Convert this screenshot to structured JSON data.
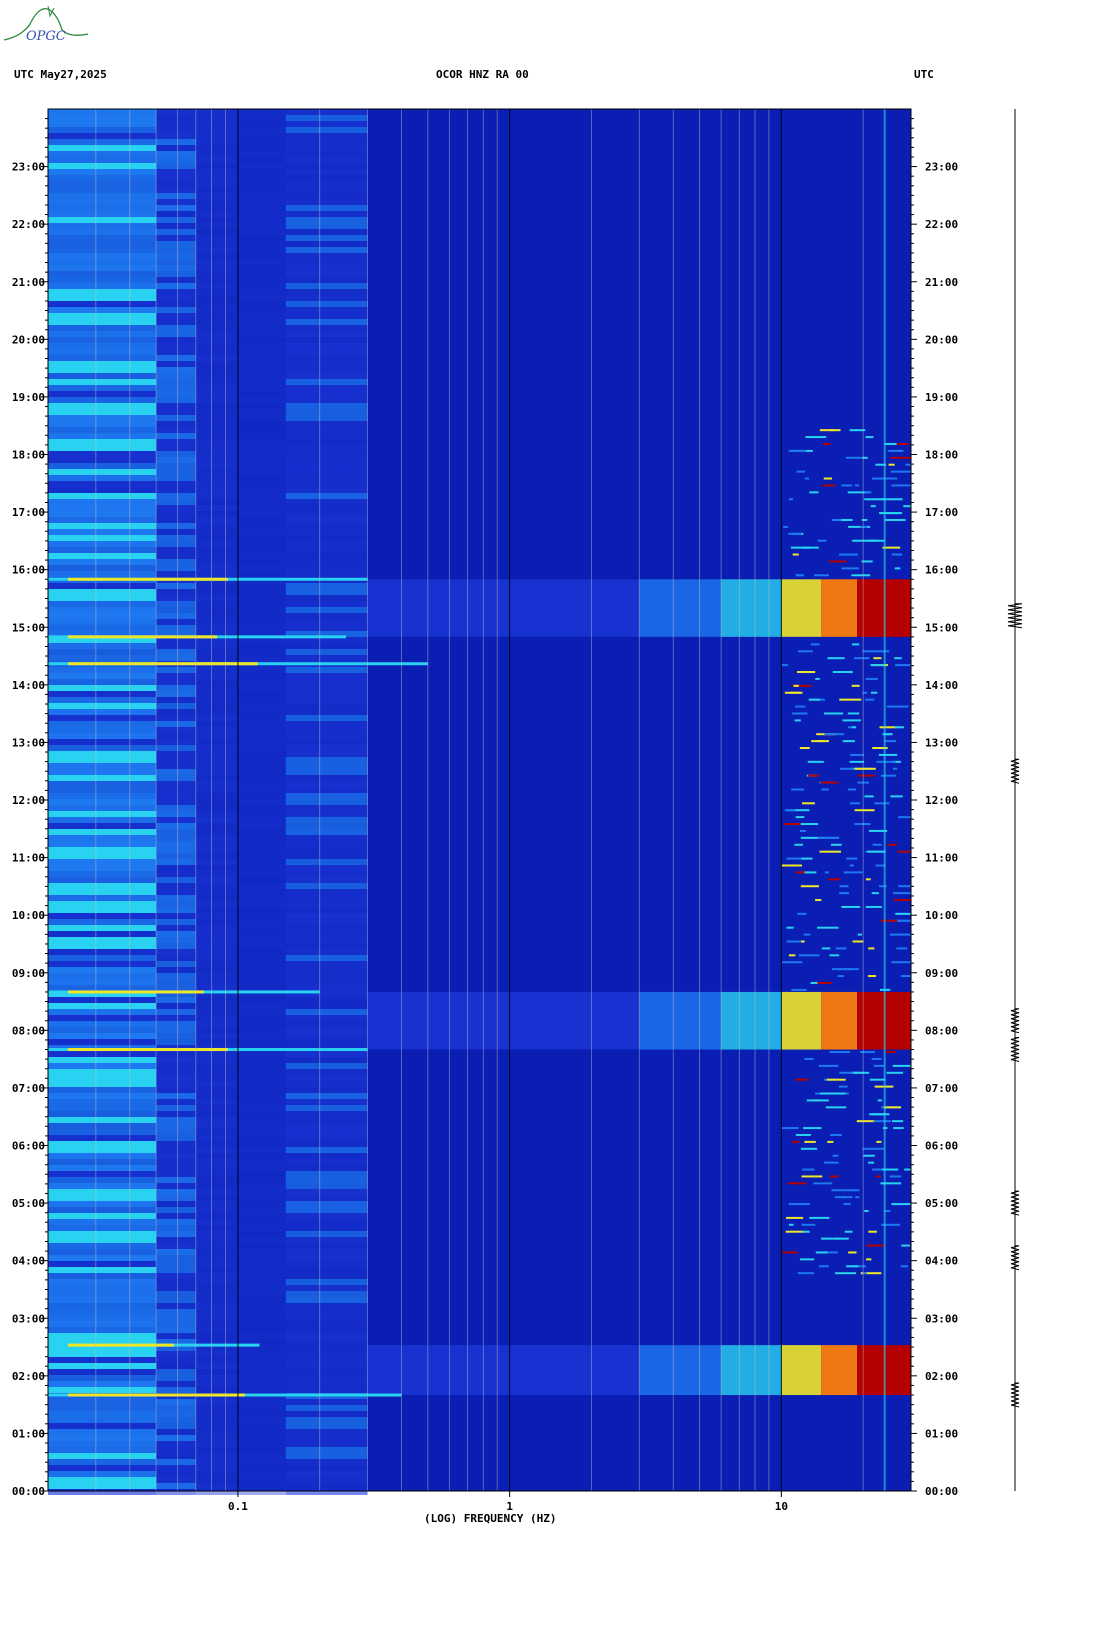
{
  "header": {
    "left": "UTC  May27,2025",
    "center": "OCOR HNZ RA 00",
    "right": "UTC"
  },
  "logo_text": "OPGC",
  "colors": {
    "background_blue": "#0a1eb4",
    "low_blue": "#1c3adc",
    "mid_blue": "#1e78f0",
    "cyan": "#28d2f0",
    "yellow": "#f0e628",
    "orange": "#f07814",
    "red": "#b40000",
    "grid": "#c0c0c0"
  },
  "chart_data": {
    "type": "heatmap",
    "xlabel": "(LOG) FREQUENCY (HZ)",
    "x_scale": "log",
    "xlim": [
      0.02,
      30
    ],
    "x_ticks": [
      {
        "value": 0.1,
        "label": "0.1"
      },
      {
        "value": 1,
        "label": "1"
      },
      {
        "value": 10,
        "label": "10"
      }
    ],
    "ylim": [
      0,
      24
    ],
    "y_ticks": [
      "00:00",
      "01:00",
      "02:00",
      "03:00",
      "04:00",
      "05:00",
      "06:00",
      "07:00",
      "08:00",
      "09:00",
      "10:00",
      "11:00",
      "12:00",
      "13:00",
      "14:00",
      "15:00",
      "16:00",
      "17:00",
      "18:00",
      "19:00",
      "20:00",
      "21:00",
      "22:00",
      "23:00"
    ],
    "vertical_grid_hz": [
      0.03,
      0.04,
      0.05,
      0.06,
      0.07,
      0.08,
      0.09,
      0.1,
      0.2,
      0.3,
      0.4,
      0.5,
      0.6,
      0.7,
      0.8,
      0.9,
      1,
      2,
      3,
      4,
      5,
      6,
      7,
      8,
      9,
      10,
      20
    ],
    "broadband_events": [
      {
        "start": "01:40",
        "end": "02:32"
      },
      {
        "start": "07:40",
        "end": "08:40"
      },
      {
        "start": "14:50",
        "end": "15:50"
      }
    ],
    "narrow_lines": [
      {
        "time": "01:40",
        "max_hz": 0.4
      },
      {
        "time": "02:32",
        "max_hz": 0.12
      },
      {
        "time": "07:40",
        "max_hz": 0.3
      },
      {
        "time": "08:40",
        "max_hz": 0.2
      },
      {
        "time": "14:22",
        "max_hz": 0.5
      },
      {
        "time": "14:50",
        "max_hz": 0.25
      },
      {
        "time": "15:50",
        "max_hz": 0.3
      }
    ],
    "seismogram_bursts": [
      "01:40",
      "04:03",
      "05:00",
      "07:40",
      "08:10",
      "12:30",
      "15:12"
    ]
  }
}
